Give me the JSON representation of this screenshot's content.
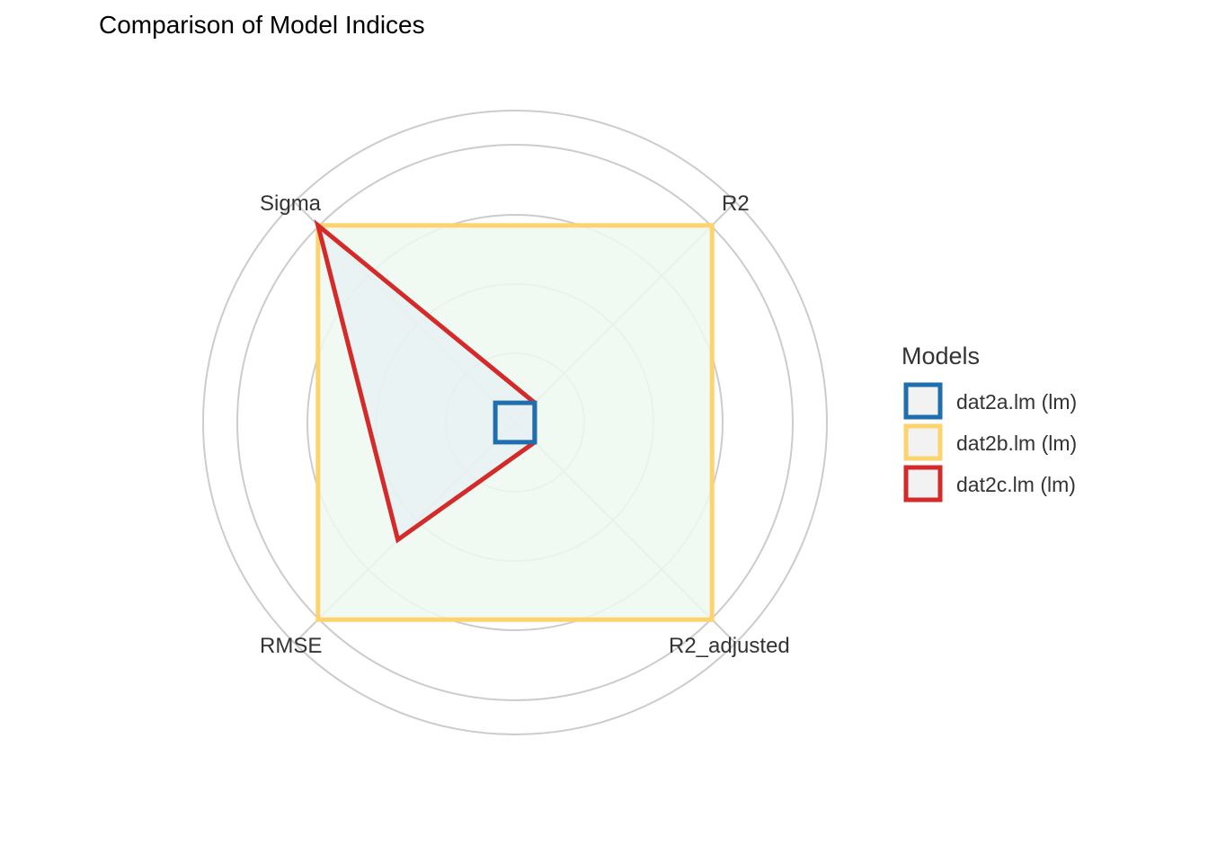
{
  "chart_data": {
    "type": "radar",
    "title": "Comparison of Model Indices",
    "axes": [
      "R2",
      "R2_adjusted",
      "RMSE",
      "Sigma"
    ],
    "ylim": [
      0,
      1
    ],
    "grid": true,
    "legend": {
      "title": "Models",
      "placement": "right"
    },
    "series": [
      {
        "name": "dat2a.lm (lm)",
        "color": "#1F6EAD",
        "values": [
          0,
          0,
          0,
          0
        ]
      },
      {
        "name": "dat2b.lm (lm)",
        "color": "#FDD36D",
        "values": [
          1,
          1,
          1,
          1
        ]
      },
      {
        "name": "dat2c.lm (lm)",
        "color": "#D42A2A",
        "values": [
          0,
          0,
          0.55,
          1
        ]
      }
    ]
  }
}
